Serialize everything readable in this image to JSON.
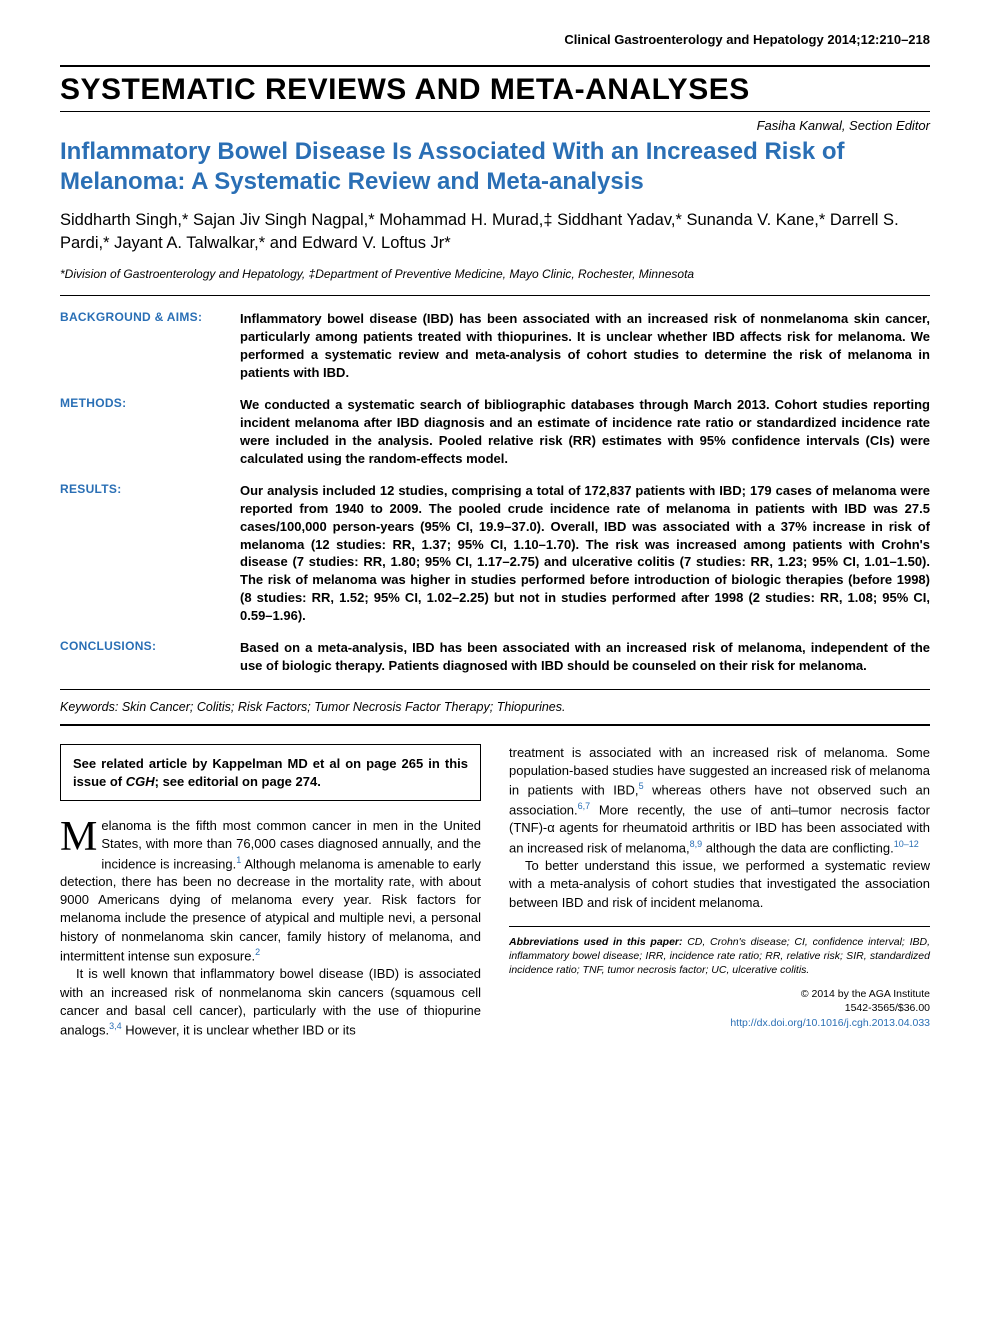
{
  "journal_header": "Clinical Gastroenterology and Hepatology 2014;12:210–218",
  "section_title": "SYSTEMATIC REVIEWS AND META-ANALYSES",
  "section_editor": "Fasiha Kanwal, Section Editor",
  "article_title": "Inflammatory Bowel Disease Is Associated With an Increased Risk of Melanoma: A Systematic Review and Meta-analysis",
  "authors_html": "Siddharth Singh,* Sajan Jiv Singh Nagpal,* Mohammad H. Murad,‡ Siddhant Yadav,* Sunanda V. Kane,* Darrell S. Pardi,* Jayant A. Talwalkar,* and Edward V. Loftus Jr*",
  "affiliations": "*Division of Gastroenterology and Hepatology, ‡Department of Preventive Medicine, Mayo Clinic, Rochester, Minnesota",
  "abstract": {
    "background": {
      "label": "BACKGROUND & AIMS:",
      "text": "Inflammatory bowel disease (IBD) has been associated with an increased risk of nonmelanoma skin cancer, particularly among patients treated with thiopurines. It is unclear whether IBD affects risk for melanoma. We performed a systematic review and meta-analysis of cohort studies to determine the risk of melanoma in patients with IBD."
    },
    "methods": {
      "label": "METHODS:",
      "text": "We conducted a systematic search of bibliographic databases through March 2013. Cohort studies reporting incident melanoma after IBD diagnosis and an estimate of incidence rate ratio or standardized incidence rate were included in the analysis. Pooled relative risk (RR) estimates with 95% confidence intervals (CIs) were calculated using the random-effects model."
    },
    "results": {
      "label": "RESULTS:",
      "text": "Our analysis included 12 studies, comprising a total of 172,837 patients with IBD; 179 cases of melanoma were reported from 1940 to 2009. The pooled crude incidence rate of melanoma in patients with IBD was 27.5 cases/100,000 person-years (95% CI, 19.9–37.0). Overall, IBD was associated with a 37% increase in risk of melanoma (12 studies: RR, 1.37; 95% CI, 1.10–1.70). The risk was increased among patients with Crohn's disease (7 studies: RR, 1.80; 95% CI, 1.17–2.75) and ulcerative colitis (7 studies: RR, 1.23; 95% CI, 1.01–1.50). The risk of melanoma was higher in studies performed before introduction of biologic therapies (before 1998) (8 studies: RR, 1.52; 95% CI, 1.02–2.25) but not in studies performed after 1998 (2 studies: RR, 1.08; 95% CI, 0.59–1.96)."
    },
    "conclusions": {
      "label": "CONCLUSIONS:",
      "text": "Based on a meta-analysis, IBD has been associated with an increased risk of melanoma, independent of the use of biologic therapy. Patients diagnosed with IBD should be counseled on their risk for melanoma."
    }
  },
  "keywords_label": "Keywords:",
  "keywords_text": " Skin Cancer; Colitis; Risk Factors; Tumor Necrosis Factor Therapy; Thiopurines.",
  "related_box_pre": "See related article by Kappelman MD et al on page 265 in this issue of ",
  "related_box_ital": "CGH",
  "related_box_post": "; see editorial on page 274.",
  "body": {
    "col1_p1_dropcap": "M",
    "col1_p1": "elanoma is the fifth most common cancer in men in the United States, with more than 76,000 cases diagnosed annually, and the incidence is increasing.",
    "col1_p1_ref1": "1",
    "col1_p1_cont": " Although melanoma is amenable to early detection, there has been no decrease in the mortality rate, with about 9000 Americans dying of melanoma every year. Risk factors for melanoma include the presence of atypical and multiple nevi, a personal history of nonmelanoma skin cancer, family history of melanoma, and intermittent intense sun exposure.",
    "col1_p1_ref2": "2",
    "col1_p2": "It is well known that inflammatory bowel disease (IBD) is associated with an increased risk of nonmelanoma skin cancers (squamous cell cancer and basal cell cancer), particularly with the use of thiopurine analogs.",
    "col1_p2_ref": "3,4",
    "col1_p2_cont": " However, it is unclear whether IBD or its",
    "col2_p1": "treatment is associated with an increased risk of melanoma. Some population-based studies have suggested an increased risk of melanoma in patients with IBD,",
    "col2_p1_ref1": "5",
    "col2_p1_cont1": " whereas others have not observed such an association.",
    "col2_p1_ref2": "6,7",
    "col2_p1_cont2": " More recently, the use of anti–tumor necrosis factor (TNF)-α agents for rheumatoid arthritis or IBD has been associated with an increased risk of melanoma,",
    "col2_p1_ref3": "8,9",
    "col2_p1_cont3": " although the data are conflicting.",
    "col2_p1_ref4": "10–12",
    "col2_p2": "To better understand this issue, we performed a systematic review with a meta-analysis of cohort studies that investigated the association between IBD and risk of incident melanoma."
  },
  "footer": {
    "abbrev_label": "Abbreviations used in this paper:",
    "abbrev_text": " CD, Crohn's disease; CI, confidence interval; IBD, inflammatory bowel disease; IRR, incidence rate ratio; RR, relative risk; SIR, standardized incidence ratio; TNF, tumor necrosis factor; UC, ulcerative colitis.",
    "copyright1": "© 2014 by the AGA Institute",
    "copyright2": "1542-3565/$36.00",
    "doi": "http://dx.doi.org/10.1016/j.cgh.2013.04.033"
  },
  "colors": {
    "accent": "#2a6fb5",
    "text": "#000000",
    "background": "#ffffff"
  }
}
